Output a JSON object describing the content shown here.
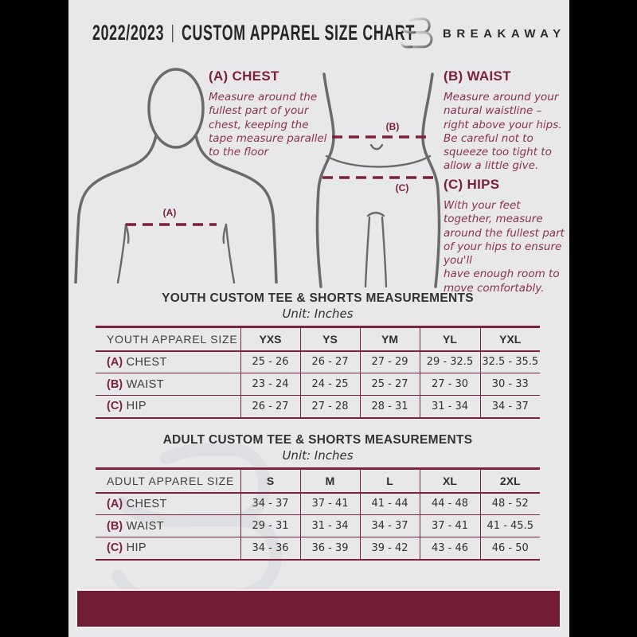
{
  "header": {
    "year": "2022/2023",
    "divider": "|",
    "title": "CUSTOM APPAREL SIZE CHART",
    "brand": "BREAKAWAY"
  },
  "sections": [
    {
      "heading": "(A) CHEST",
      "body": "Measure around the\nfullest part of your\nchest, keeping the\ntape measure parallel\nto the floor"
    },
    {
      "heading": "(B) WAIST",
      "body": "Measure around your\nnatural waistline –\nright above your hips.\nBe careful not to\nsqueeze too tight to\nallow a little give."
    },
    {
      "heading": "(C) HIPS",
      "body": "With your feet\ntogether, measure\naround the fullest part\nof your hips to ensure\nyou'll\nhave enough room to\nmove comfortably."
    }
  ],
  "diagram": {
    "chest_label": "(A)",
    "waist_label": "(B)",
    "hips_label": "(C)"
  },
  "tables": [
    {
      "title": "YOUTH CUSTOM TEE & SHORTS MEASUREMENTS",
      "unit": "Unit: Inches",
      "first_col_header": "YOUTH APPAREL SIZE",
      "size_headers": [
        "YXS",
        "YS",
        "YM",
        "YL",
        "YXL"
      ],
      "rows": [
        {
          "key": "(A)",
          "label": "CHEST",
          "values": [
            "25 - 26",
            "26 - 27",
            "27 - 29",
            "29 - 32.5",
            "32.5 - 35.5"
          ]
        },
        {
          "key": "(B)",
          "label": "WAIST",
          "values": [
            "23 - 24",
            "24 - 25",
            "25 - 27",
            "27 - 30",
            "30 - 33"
          ]
        },
        {
          "key": "(C)",
          "label": "HIP",
          "values": [
            "26 - 27",
            "27 - 28",
            "28 - 31",
            "31 - 34",
            "34 - 37"
          ]
        }
      ]
    },
    {
      "title": "ADULT CUSTOM TEE & SHORTS MEASUREMENTS",
      "unit": "Unit: Inches",
      "first_col_header": "ADULT APPAREL SIZE",
      "size_headers": [
        "S",
        "M",
        "L",
        "XL",
        "2XL"
      ],
      "rows": [
        {
          "key": "(A)",
          "label": "CHEST",
          "values": [
            "34 - 37",
            "37 - 41",
            "41 - 44",
            "44 - 48",
            "48 - 52"
          ]
        },
        {
          "key": "(B)",
          "label": "WAIST",
          "values": [
            "29 - 31",
            "31 - 34",
            "34 - 37",
            "37 - 41",
            "41 - 45.5"
          ]
        },
        {
          "key": "(C)",
          "label": "HIP",
          "values": [
            "34 - 36",
            "36 - 39",
            "39 - 42",
            "43 - 46",
            "46 - 50"
          ]
        }
      ]
    }
  ],
  "colors": {
    "maroon_bar": "#721c36",
    "maroon_lines": "#7b2340",
    "maroon_heading": "#7c1f3a",
    "maroon_body_text": "#8a3150",
    "page_background": "#e8e8ea",
    "letterbox": "#000000",
    "silhouette_gray": "#6a6a6a",
    "dark_text": "#282828"
  }
}
